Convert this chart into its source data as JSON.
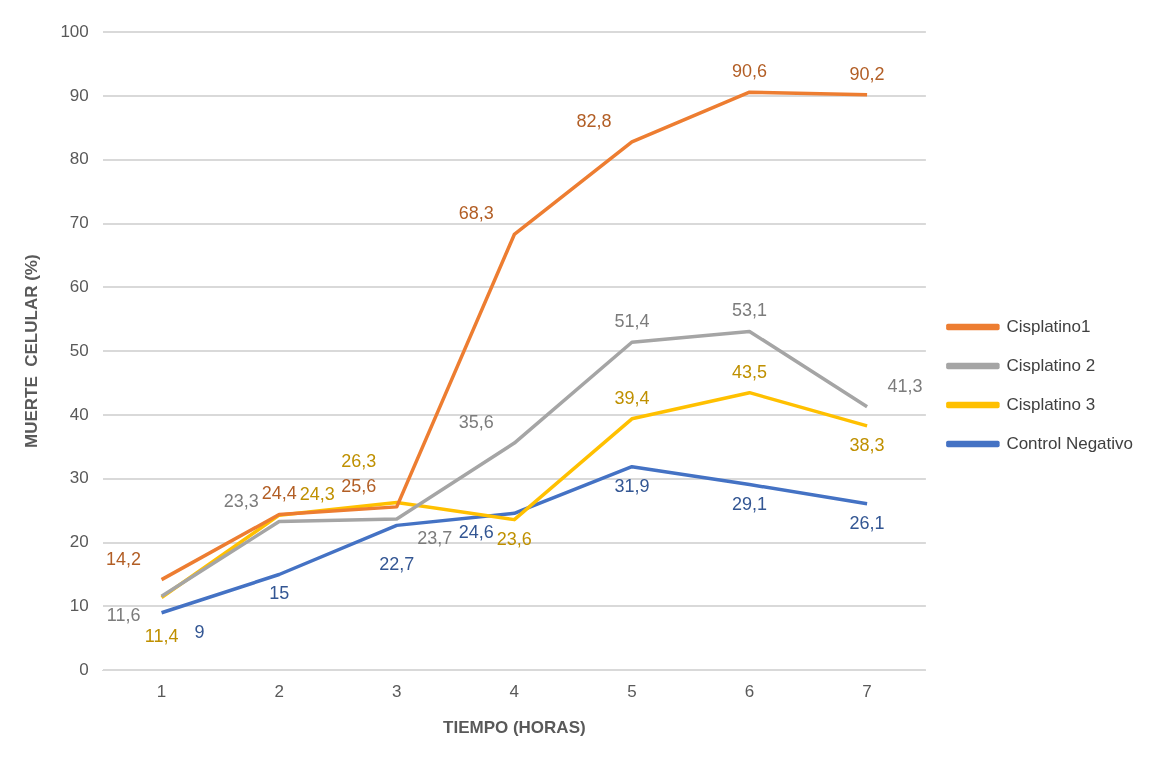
{
  "chart_data": {
    "type": "line",
    "xlabel": "TIEMPO (HORAS)",
    "ylabel": "MUERTE  CELULAR (%)",
    "categories": [
      "1",
      "2",
      "3",
      "4",
      "5",
      "6",
      "7"
    ],
    "series": [
      {
        "name": "Cisplatino1",
        "color": "#ed7d31",
        "values": [
          14.2,
          24.4,
          25.6,
          68.3,
          82.8,
          90.6,
          90.2
        ],
        "value_labels": [
          "14,2",
          "24,4",
          "25,6",
          "68,3",
          "82,8",
          "90,6",
          "90,2"
        ]
      },
      {
        "name": "Cisplatino 2",
        "color": "#a5a5a5",
        "values": [
          11.6,
          23.3,
          23.7,
          35.6,
          51.4,
          53.1,
          41.3
        ],
        "value_labels": [
          "11,6",
          "23,3",
          "23,7",
          "35,6",
          "51,4",
          "53,1",
          "41,3"
        ]
      },
      {
        "name": "Cisplatino 3",
        "color": "#ffc000",
        "values": [
          11.4,
          24.3,
          26.3,
          23.6,
          39.4,
          43.5,
          38.3
        ],
        "value_labels": [
          "11,4",
          "24,3",
          "26,3",
          "23,6",
          "39,4",
          "43,5",
          "38,3"
        ]
      },
      {
        "name": "Control Negativo",
        "color": "#4472c4",
        "values": [
          9,
          15,
          22.7,
          24.6,
          31.9,
          29.1,
          26.1
        ],
        "value_labels": [
          "9",
          "15",
          "22,7",
          "24,6",
          "31,9",
          "29,1",
          "26,1"
        ]
      }
    ],
    "ylim": [
      0,
      100
    ],
    "yticks": [
      0,
      10,
      20,
      30,
      40,
      50,
      60,
      70,
      80,
      90,
      100
    ],
    "grid": "y",
    "legend": "right",
    "marker": "none",
    "line_style": "solid"
  }
}
